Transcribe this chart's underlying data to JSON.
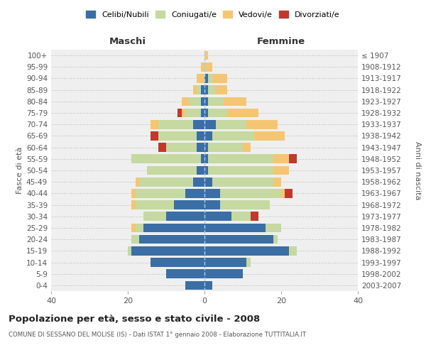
{
  "age_groups": [
    "0-4",
    "5-9",
    "10-14",
    "15-19",
    "20-24",
    "25-29",
    "30-34",
    "35-39",
    "40-44",
    "45-49",
    "50-54",
    "55-59",
    "60-64",
    "65-69",
    "70-74",
    "75-79",
    "80-84",
    "85-89",
    "90-94",
    "95-99",
    "100+"
  ],
  "birth_years": [
    "2003-2007",
    "1998-2002",
    "1993-1997",
    "1988-1992",
    "1983-1987",
    "1978-1982",
    "1973-1977",
    "1968-1972",
    "1963-1967",
    "1958-1962",
    "1953-1957",
    "1948-1952",
    "1943-1947",
    "1938-1942",
    "1933-1937",
    "1928-1932",
    "1923-1927",
    "1918-1922",
    "1913-1917",
    "1908-1912",
    "≤ 1907"
  ],
  "colors": {
    "celibi": "#3a6ea5",
    "coniugati": "#c5d9a0",
    "vedovi": "#f5c672",
    "divorziati": "#c0392b"
  },
  "maschi": {
    "celibi": [
      5,
      10,
      14,
      19,
      17,
      16,
      10,
      8,
      5,
      3,
      2,
      1,
      2,
      2,
      3,
      1,
      1,
      1,
      0,
      0,
      0
    ],
    "coniugati": [
      0,
      0,
      0,
      1,
      2,
      2,
      6,
      10,
      13,
      14,
      13,
      18,
      8,
      10,
      9,
      4,
      3,
      1,
      0,
      0,
      0
    ],
    "vedovi": [
      0,
      0,
      0,
      0,
      0,
      1,
      0,
      1,
      1,
      1,
      0,
      0,
      0,
      0,
      2,
      1,
      2,
      1,
      2,
      1,
      0
    ],
    "divorziati": [
      0,
      0,
      0,
      0,
      0,
      0,
      0,
      0,
      0,
      0,
      0,
      0,
      2,
      2,
      0,
      1,
      0,
      0,
      0,
      0,
      0
    ]
  },
  "femmine": {
    "celibi": [
      2,
      10,
      11,
      22,
      18,
      16,
      7,
      4,
      4,
      2,
      1,
      1,
      1,
      2,
      3,
      1,
      1,
      1,
      1,
      0,
      0
    ],
    "coniugati": [
      0,
      0,
      1,
      2,
      1,
      4,
      5,
      13,
      16,
      16,
      17,
      17,
      9,
      11,
      8,
      5,
      4,
      2,
      1,
      0,
      0
    ],
    "vedovi": [
      0,
      0,
      0,
      0,
      0,
      0,
      0,
      0,
      1,
      2,
      4,
      4,
      2,
      8,
      8,
      8,
      6,
      3,
      4,
      2,
      1
    ],
    "divorziati": [
      0,
      0,
      0,
      0,
      0,
      0,
      2,
      0,
      2,
      0,
      0,
      2,
      0,
      0,
      0,
      0,
      0,
      0,
      0,
      0,
      0
    ]
  },
  "title": "Popolazione per età, sesso e stato civile - 2008",
  "subtitle": "COMUNE DI SESSANO DEL MOLISE (IS) - Dati ISTAT 1° gennaio 2008 - Elaborazione TUTTITALIA.IT",
  "xlabel_left": "Maschi",
  "xlabel_right": "Femmine",
  "ylabel_left": "Fasce di età",
  "ylabel_right": "Anni di nascita",
  "xlim": 40,
  "legend_labels": [
    "Celibi/Nubili",
    "Coniugati/e",
    "Vedovi/e",
    "Divorziati/e"
  ],
  "background_color": "#ffffff",
  "plot_bg_color": "#efefef",
  "grid_color": "#cccccc"
}
